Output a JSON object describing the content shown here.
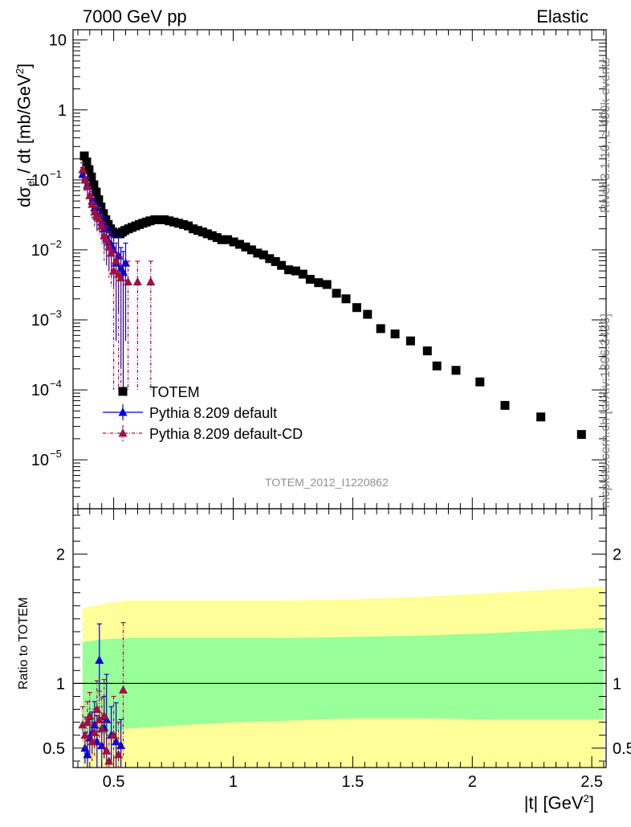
{
  "header": {
    "left_label": "7000 GeV pp",
    "right_label": "Elastic"
  },
  "side_notes": {
    "top": "Rivet 3.1.10, ≥ 400k events",
    "bottom": "mcplots.cern.ch [arXiv:1306.3436]"
  },
  "analysis_id": "TOTEM_2012_I1220862",
  "axes": {
    "main_ylabel_prefix": "dσ",
    "main_ylabel_sub": "el",
    "main_ylabel_mid": " / dt [mb/GeV",
    "main_ylabel_sup": "2",
    "main_ylabel_end": "]",
    "ratio_ylabel": "Ratio to TOTEM",
    "xlabel_prefix": "|t| [GeV",
    "xlabel_sup": "2",
    "xlabel_end": "]"
  },
  "colors": {
    "totem": "#000000",
    "pythia_default": "#0000dd",
    "pythia_cd": "#a01040",
    "band_inner": "#99ff99",
    "band_outer": "#ffff99"
  },
  "legend": [
    {
      "label": "TOTEM",
      "marker": "square"
    },
    {
      "label": "Pythia 8.209 default",
      "marker": "triangle"
    },
    {
      "label": "Pythia 8.209 default-CD",
      "marker": "triangle"
    }
  ],
  "chart_data": [
    {
      "type": "scatter",
      "panel": "main",
      "log_y": true,
      "xlim": [
        0.33,
        2.56
      ],
      "ylim": [
        2e-06,
        14
      ],
      "x_ticks": [
        0.5,
        1,
        1.5,
        2,
        2.5
      ],
      "y_ticks": [
        {
          "value": 10,
          "label": "10"
        },
        {
          "value": 1,
          "label": "1"
        },
        {
          "value": 0.1,
          "label": "10",
          "exp": "−1"
        },
        {
          "value": 0.01,
          "label": "10",
          "exp": "−2"
        },
        {
          "value": 0.001,
          "label": "10",
          "exp": "−3"
        },
        {
          "value": 0.0001,
          "label": "10",
          "exp": "−4"
        },
        {
          "value": 1e-05,
          "label": "10",
          "exp": "−5"
        }
      ],
      "series": [
        {
          "name": "TOTEM",
          "x": [
            0.377,
            0.387,
            0.397,
            0.407,
            0.417,
            0.427,
            0.437,
            0.447,
            0.457,
            0.467,
            0.477,
            0.487,
            0.497,
            0.507,
            0.517,
            0.527,
            0.537,
            0.547,
            0.562,
            0.577,
            0.592,
            0.607,
            0.622,
            0.637,
            0.652,
            0.672,
            0.692,
            0.712,
            0.732,
            0.752,
            0.772,
            0.792,
            0.812,
            0.832,
            0.852,
            0.872,
            0.892,
            0.912,
            0.932,
            0.952,
            0.977,
            1.002,
            1.027,
            1.052,
            1.077,
            1.102,
            1.127,
            1.152,
            1.177,
            1.202,
            1.232,
            1.262,
            1.292,
            1.322,
            1.357,
            1.392,
            1.432,
            1.472,
            1.517,
            1.562,
            1.617,
            1.677,
            1.742,
            1.812,
            1.852,
            1.932,
            2.032,
            2.137,
            2.287,
            2.457
          ],
          "y": [
            0.22,
            0.18,
            0.14,
            0.11,
            0.085,
            0.067,
            0.052,
            0.041,
            0.033,
            0.027,
            0.023,
            0.02,
            0.018,
            0.017,
            0.017,
            0.017,
            0.018,
            0.019,
            0.02,
            0.021,
            0.022,
            0.023,
            0.024,
            0.025,
            0.026,
            0.027,
            0.027,
            0.027,
            0.026,
            0.025,
            0.024,
            0.023,
            0.022,
            0.02,
            0.019,
            0.018,
            0.017,
            0.016,
            0.015,
            0.014,
            0.014,
            0.013,
            0.012,
            0.011,
            0.01,
            0.009,
            0.0085,
            0.0075,
            0.0068,
            0.006,
            0.0052,
            0.005,
            0.0045,
            0.0038,
            0.0034,
            0.0032,
            0.0024,
            0.002,
            0.0015,
            0.0012,
            0.00075,
            0.00063,
            0.0005,
            0.00036,
            0.00022,
            0.00019,
            0.00013,
            6e-05,
            4.1e-05,
            2.3e-05
          ]
        },
        {
          "name": "Pythia 8.209 default",
          "x": [
            0.37,
            0.38,
            0.39,
            0.4,
            0.41,
            0.42,
            0.43,
            0.44,
            0.45,
            0.46,
            0.47,
            0.48,
            0.49,
            0.5,
            0.51,
            0.52,
            0.53,
            0.54,
            0.55
          ],
          "y": [
            0.12,
            0.1,
            0.085,
            0.06,
            0.05,
            0.04,
            0.032,
            0.03,
            0.025,
            0.02,
            0.015,
            0.013,
            0.012,
            0.01,
            0.0065,
            0.0082,
            0.0055,
            0.0048,
            0.0065
          ],
          "yerr": [
            0.03,
            0.03,
            0.025,
            0.02,
            0.018,
            0.015,
            0.013,
            0.012,
            0.011,
            0.01,
            0.009,
            0.008,
            0.008,
            0.007,
            0.006,
            0.007,
            0.0053,
            0.0047,
            0.006
          ]
        },
        {
          "name": "Pythia 8.209 default-CD",
          "x": [
            0.37,
            0.38,
            0.39,
            0.4,
            0.41,
            0.42,
            0.43,
            0.44,
            0.45,
            0.46,
            0.47,
            0.48,
            0.49,
            0.5,
            0.51,
            0.52,
            0.53,
            0.56,
            0.6,
            0.655
          ],
          "y": [
            0.14,
            0.1,
            0.08,
            0.06,
            0.045,
            0.035,
            0.03,
            0.028,
            0.022,
            0.016,
            0.014,
            0.011,
            0.009,
            0.005,
            0.007,
            0.0045,
            0.004,
            0.0035,
            0.0035,
            0.0035
          ],
          "yerr": [
            0.035,
            0.03,
            0.025,
            0.02,
            0.017,
            0.014,
            0.012,
            0.012,
            0.01,
            0.009,
            0.008,
            0.007,
            0.006,
            0.0049,
            0.0055,
            0.0044,
            0.0039,
            0.0034,
            0.0034,
            0.0034
          ]
        }
      ]
    },
    {
      "type": "scatter",
      "panel": "ratio",
      "xlim": [
        0.33,
        2.56
      ],
      "ylim": [
        0.35,
        2.35
      ],
      "y_ticks": [
        0.5,
        1,
        2
      ],
      "reference_line": 1,
      "bands": {
        "x": [
          0.37,
          0.45,
          0.55,
          0.8,
          1.0,
          1.2,
          1.5,
          1.8,
          2.1,
          2.55
        ],
        "inner_low": [
          0.58,
          0.6,
          0.65,
          0.68,
          0.7,
          0.71,
          0.73,
          0.73,
          0.72,
          0.72
        ],
        "inner_high": [
          1.32,
          1.34,
          1.35,
          1.35,
          1.35,
          1.35,
          1.36,
          1.37,
          1.39,
          1.43
        ],
        "outer_low": [
          0.35,
          0.35,
          0.35,
          0.35,
          0.35,
          0.35,
          0.35,
          0.35,
          0.35,
          0.35
        ],
        "outer_high": [
          1.58,
          1.61,
          1.64,
          1.64,
          1.64,
          1.64,
          1.65,
          1.67,
          1.7,
          1.75
        ]
      },
      "series": [
        {
          "name": "Pythia 8.209 default",
          "x": [
            0.38,
            0.39,
            0.4,
            0.41,
            0.42,
            0.43,
            0.44,
            0.45,
            0.46,
            0.47,
            0.49,
            0.51,
            0.53
          ],
          "y": [
            0.5,
            0.45,
            0.58,
            0.62,
            0.68,
            0.55,
            1.18,
            0.52,
            0.66,
            0.72,
            0.6,
            0.55,
            0.52
          ],
          "yerr": [
            0.12,
            0.14,
            0.14,
            0.16,
            0.18,
            0.2,
            0.28,
            0.2,
            0.24,
            0.35,
            0.22,
            0.3,
            0.2
          ]
        },
        {
          "name": "Pythia 8.209 default-CD",
          "x": [
            0.37,
            0.38,
            0.39,
            0.4,
            0.41,
            0.42,
            0.43,
            0.44,
            0.45,
            0.46,
            0.47,
            0.48,
            0.5,
            0.52,
            0.54
          ],
          "y": [
            0.68,
            0.6,
            0.7,
            0.75,
            0.55,
            0.62,
            0.8,
            0.72,
            0.65,
            0.75,
            0.48,
            0.4,
            0.6,
            0.45,
            0.95
          ],
          "yerr": [
            0.14,
            0.14,
            0.16,
            0.18,
            0.15,
            0.18,
            0.22,
            0.22,
            0.24,
            0.28,
            0.22,
            0.2,
            0.3,
            0.25,
            0.52
          ]
        }
      ]
    }
  ]
}
